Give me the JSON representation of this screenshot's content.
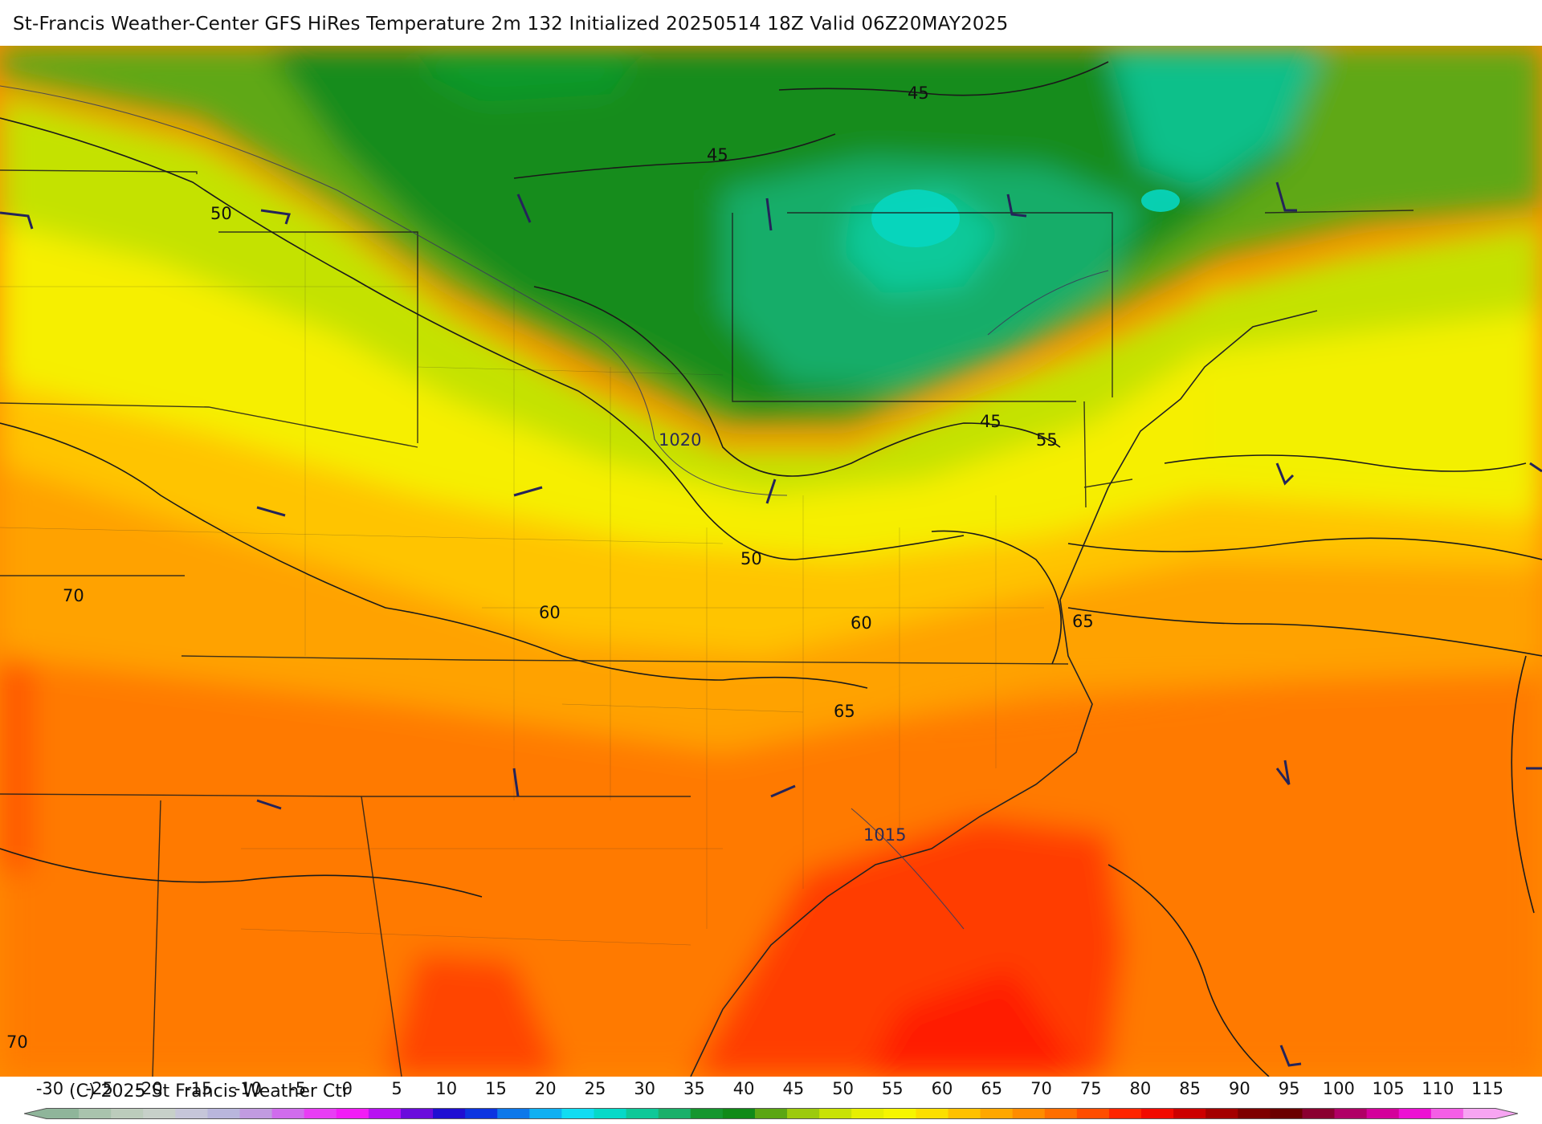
{
  "title": "St-Francis Weather-Center GFS HiRes Temperature 2m  132 Initialized 20250514 18Z Valid 06Z20MAY2025",
  "copyright": "(C) 2025 St Francis Weather Ctr",
  "contour_labels": [
    "45",
    "45",
    "45",
    "50",
    "50",
    "55",
    "60",
    "60",
    "65",
    "65",
    "70",
    "70"
  ],
  "pressure_labels": [
    "1020",
    "1015"
  ],
  "colorbar": {
    "ticks": [
      "-30",
      "-25",
      "-20",
      "-15",
      "-10",
      "-5",
      "0",
      "5",
      "10",
      "15",
      "20",
      "25",
      "30",
      "35",
      "40",
      "45",
      "50",
      "55",
      "60",
      "65",
      "70",
      "75",
      "80",
      "85",
      "90",
      "95",
      "100",
      "105",
      "110",
      "115"
    ],
    "colors": [
      "#8fb59a",
      "#a9c3ad",
      "#bcccbc",
      "#c7d0c9",
      "#c6c6d9",
      "#b9b6dc",
      "#c19be0",
      "#d06cec",
      "#e83df4",
      "#f21cf6",
      "#b812f2",
      "#6a0cdc",
      "#1f0fd2",
      "#0c34e0",
      "#0d78ea",
      "#10b0f2",
      "#12dcf2",
      "#06d9c8",
      "#0ec898",
      "#1ab06a",
      "#15962f",
      "#108a18",
      "#5ba613",
      "#9cca0d",
      "#c8e205",
      "#e7ef01",
      "#f6f600",
      "#fcdf00",
      "#ffc100",
      "#ffa700",
      "#ff8c00",
      "#ff6e00",
      "#ff4d00",
      "#ff2500",
      "#f20a00",
      "#cc0000",
      "#a40000",
      "#7e0000",
      "#6b0000",
      "#8a0030",
      "#b00066",
      "#d4009b",
      "#ec11d3",
      "#f45ee6",
      "#f7a5f2"
    ]
  }
}
